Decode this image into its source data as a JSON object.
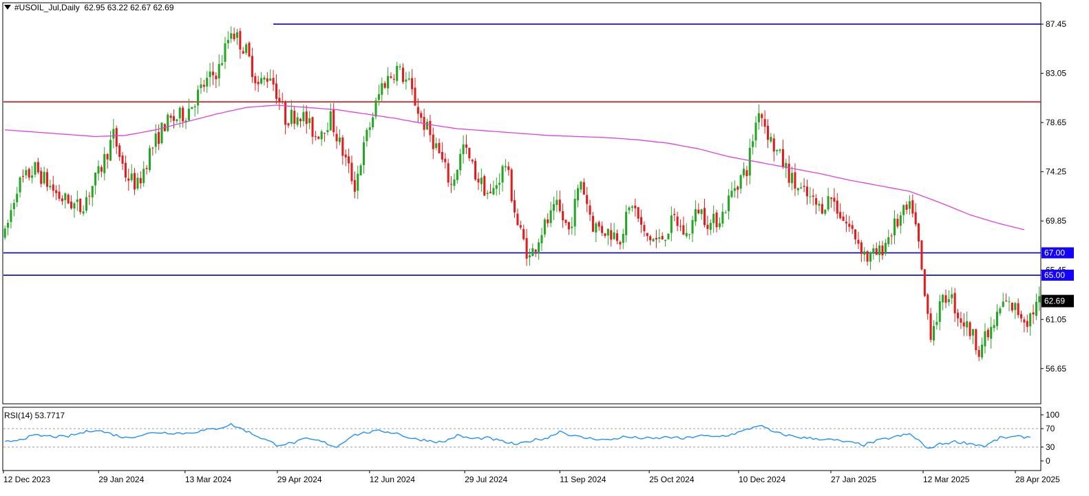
{
  "header": {
    "symbol": "#USOIL_Jul,Daily",
    "ohlc": "62.95 63.22 62.67 62.69"
  },
  "rsi": {
    "label": "RSI(14) 53.7717",
    "levels": [
      "100",
      "70",
      "30",
      "0"
    ]
  },
  "colors": {
    "bull": "#22a722",
    "bear": "#e41b1b",
    "ma": "#e040e0",
    "rsi": "#1e90ff",
    "hline_blue": "#0000cc",
    "hline_red": "#e01010",
    "badge_blue": "#1400ff",
    "badge_black": "#000000"
  },
  "chart_data": {
    "type": "candlestick",
    "title": "#USOIL_Jul,Daily",
    "x_ticks": [
      "12 Dec 2023",
      "29 Jan 2024",
      "13 Mar 2024",
      "29 Apr 2024",
      "12 Jun 2024",
      "29 Jul 2024",
      "11 Sep 2024",
      "25 Oct 2024",
      "10 Dec 2024",
      "27 Jan 2025",
      "12 Mar 2025",
      "28 Apr 2025"
    ],
    "y_ticks": [
      "87.45",
      "83.05",
      "78.65",
      "74.25",
      "69.85",
      "65.45",
      "61.05",
      "56.65"
    ],
    "ylim": [
      53.5,
      89.3
    ],
    "current_price": "62.69",
    "horizontal_lines": [
      {
        "value": 87.45,
        "color": "blue",
        "label": ""
      },
      {
        "value": 80.5,
        "color": "red",
        "label": ""
      },
      {
        "value": 67.0,
        "color": "blue",
        "label": "67.00"
      },
      {
        "value": 65.0,
        "color": "blue",
        "label": "65.00"
      }
    ],
    "price_path": [
      [
        0,
        68.5
      ],
      [
        4,
        73.0
      ],
      [
        10,
        74.5
      ],
      [
        18,
        72.0
      ],
      [
        25,
        71.0
      ],
      [
        31,
        74.0
      ],
      [
        36,
        77.5
      ],
      [
        40,
        74.0
      ],
      [
        44,
        73.0
      ],
      [
        48,
        76.0
      ],
      [
        53,
        78.5
      ],
      [
        60,
        79.5
      ],
      [
        66,
        82.0
      ],
      [
        71,
        83.5
      ],
      [
        75,
        87.0
      ],
      [
        80,
        85.0
      ],
      [
        84,
        82.0
      ],
      [
        88,
        83.0
      ],
      [
        93,
        79.0
      ],
      [
        98,
        79.5
      ],
      [
        103,
        77.5
      ],
      [
        108,
        79.0
      ],
      [
        112,
        76.0
      ],
      [
        116,
        73.0
      ],
      [
        120,
        77.5
      ],
      [
        125,
        82.0
      ],
      [
        130,
        83.5
      ],
      [
        134,
        82.0
      ],
      [
        138,
        79.0
      ],
      [
        143,
        76.5
      ],
      [
        148,
        73.0
      ],
      [
        152,
        76.5
      ],
      [
        156,
        74.0
      ],
      [
        161,
        72.0
      ],
      [
        166,
        75.0
      ],
      [
        170,
        69.5
      ],
      [
        174,
        66.5
      ],
      [
        178,
        69.0
      ],
      [
        183,
        71.0
      ],
      [
        187,
        69.0
      ],
      [
        191,
        73.5
      ],
      [
        195,
        69.5
      ],
      [
        199,
        69.0
      ],
      [
        204,
        68.5
      ],
      [
        208,
        71.5
      ],
      [
        212,
        68.5
      ],
      [
        217,
        68.0
      ],
      [
        222,
        70.0
      ],
      [
        226,
        68.5
      ],
      [
        230,
        71.0
      ],
      [
        234,
        69.5
      ],
      [
        238,
        70.5
      ],
      [
        242,
        73.0
      ],
      [
        246,
        74.5
      ],
      [
        250,
        80.0
      ],
      [
        254,
        77.0
      ],
      [
        258,
        75.0
      ],
      [
        262,
        73.0
      ],
      [
        266,
        72.0
      ],
      [
        270,
        71.0
      ],
      [
        274,
        72.0
      ],
      [
        278,
        70.0
      ],
      [
        282,
        68.5
      ],
      [
        286,
        66.5
      ],
      [
        290,
        67.0
      ],
      [
        294,
        69.0
      ],
      [
        298,
        70.5
      ],
      [
        301,
        71.0
      ],
      [
        303,
        67.5
      ],
      [
        305,
        63.0
      ],
      [
        307,
        60.0
      ],
      [
        310,
        62.0
      ],
      [
        313,
        63.5
      ],
      [
        316,
        61.5
      ],
      [
        320,
        60.0
      ],
      [
        323,
        58.5
      ],
      [
        327,
        60.0
      ],
      [
        331,
        62.5
      ],
      [
        335,
        62.0
      ],
      [
        339,
        61.0
      ],
      [
        343,
        62.69
      ]
    ],
    "ma_path": [
      [
        0,
        78.0
      ],
      [
        10,
        77.8
      ],
      [
        20,
        77.6
      ],
      [
        30,
        77.4
      ],
      [
        40,
        77.5
      ],
      [
        50,
        78.0
      ],
      [
        60,
        78.7
      ],
      [
        70,
        79.4
      ],
      [
        80,
        80.0
      ],
      [
        90,
        80.2
      ],
      [
        100,
        80.0
      ],
      [
        110,
        79.8
      ],
      [
        120,
        79.4
      ],
      [
        130,
        79.0
      ],
      [
        140,
        78.5
      ],
      [
        150,
        78.1
      ],
      [
        160,
        77.9
      ],
      [
        170,
        77.7
      ],
      [
        180,
        77.5
      ],
      [
        190,
        77.4
      ],
      [
        200,
        77.3
      ],
      [
        210,
        77.1
      ],
      [
        220,
        76.8
      ],
      [
        230,
        76.3
      ],
      [
        240,
        75.6
      ],
      [
        250,
        75.1
      ],
      [
        260,
        74.6
      ],
      [
        270,
        74.1
      ],
      [
        280,
        73.5
      ],
      [
        290,
        73.0
      ],
      [
        300,
        72.5
      ],
      [
        310,
        71.5
      ],
      [
        320,
        70.4
      ],
      [
        330,
        69.6
      ],
      [
        339,
        69.0
      ]
    ],
    "rsi_path": [
      [
        0,
        40
      ],
      [
        10,
        55
      ],
      [
        20,
        52
      ],
      [
        30,
        68
      ],
      [
        40,
        50
      ],
      [
        50,
        62
      ],
      [
        60,
        60
      ],
      [
        70,
        70
      ],
      [
        75,
        79
      ],
      [
        80,
        65
      ],
      [
        85,
        50
      ],
      [
        90,
        35
      ],
      [
        95,
        38
      ],
      [
        100,
        48
      ],
      [
        105,
        42
      ],
      [
        110,
        30
      ],
      [
        115,
        55
      ],
      [
        120,
        62
      ],
      [
        125,
        65
      ],
      [
        130,
        60
      ],
      [
        135,
        48
      ],
      [
        140,
        45
      ],
      [
        145,
        40
      ],
      [
        150,
        55
      ],
      [
        155,
        48
      ],
      [
        160,
        50
      ],
      [
        165,
        42
      ],
      [
        170,
        35
      ],
      [
        175,
        45
      ],
      [
        180,
        50
      ],
      [
        184,
        65
      ],
      [
        188,
        55
      ],
      [
        192,
        50
      ],
      [
        196,
        48
      ],
      [
        200,
        45
      ],
      [
        205,
        52
      ],
      [
        210,
        50
      ],
      [
        215,
        48
      ],
      [
        220,
        52
      ],
      [
        225,
        48
      ],
      [
        230,
        55
      ],
      [
        235,
        52
      ],
      [
        240,
        56
      ],
      [
        245,
        65
      ],
      [
        250,
        78
      ],
      [
        255,
        62
      ],
      [
        260,
        55
      ],
      [
        265,
        50
      ],
      [
        270,
        48
      ],
      [
        275,
        45
      ],
      [
        280,
        40
      ],
      [
        285,
        35
      ],
      [
        290,
        45
      ],
      [
        295,
        52
      ],
      [
        300,
        58
      ],
      [
        303,
        45
      ],
      [
        306,
        25
      ],
      [
        309,
        35
      ],
      [
        315,
        42
      ],
      [
        320,
        38
      ],
      [
        325,
        32
      ],
      [
        330,
        50
      ],
      [
        335,
        52
      ],
      [
        340,
        52
      ]
    ]
  }
}
